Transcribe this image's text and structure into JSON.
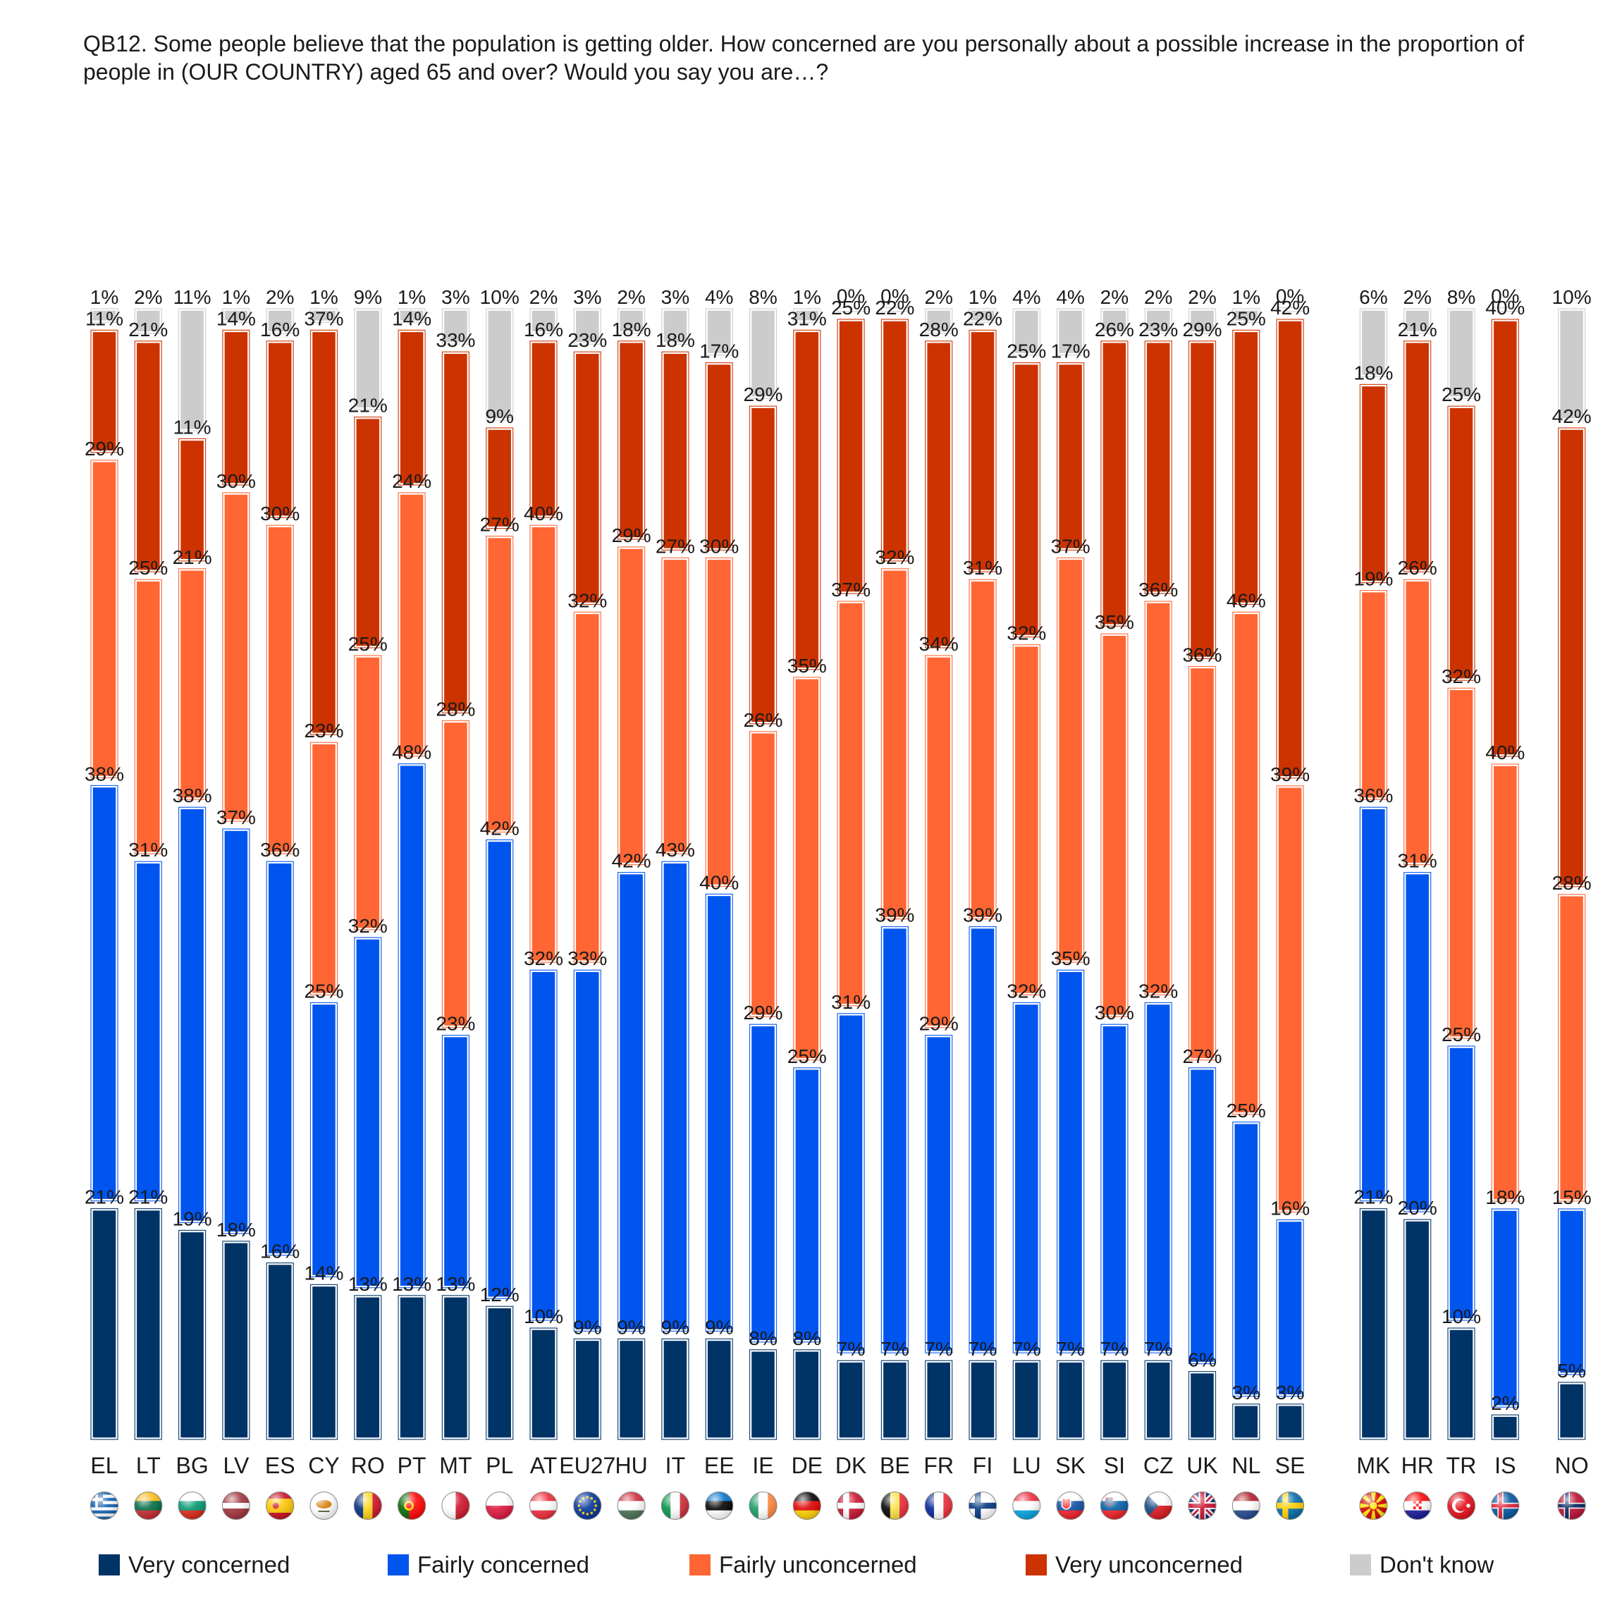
{
  "title": "QB12. Some people believe that the population is getting older. How concerned are you personally about a possible increase in the proportion of people in (OUR COUNTRY) aged 65 and over? Would you say you are…?",
  "chart_data": {
    "type": "bar",
    "stacking": "separated vertical bars per category (floating segments)",
    "ylim": [
      0,
      100
    ],
    "grid": false,
    "legend_position": "bottom",
    "categories": [
      "EL",
      "LT",
      "BG",
      "LV",
      "ES",
      "CY",
      "RO",
      "PT",
      "MT",
      "PL",
      "AT",
      "EU27",
      "HU",
      "IT",
      "EE",
      "IE",
      "DE",
      "DK",
      "BE",
      "FR",
      "FI",
      "LU",
      "SK",
      "SI",
      "CZ",
      "UK",
      "NL",
      "SE",
      "MK",
      "HR",
      "TR",
      "IS",
      "NO"
    ],
    "category_groups": [
      {
        "categories": [
          "EL",
          "LT",
          "BG",
          "LV",
          "ES",
          "CY",
          "RO",
          "PT",
          "MT",
          "PL",
          "AT",
          "EU27",
          "HU",
          "IT",
          "EE",
          "IE",
          "DE",
          "DK",
          "BE",
          "FR",
          "FI",
          "LU",
          "SK",
          "SI",
          "CZ",
          "UK",
          "NL",
          "SE"
        ]
      },
      {
        "categories": [
          "MK",
          "HR",
          "TR",
          "IS"
        ]
      },
      {
        "categories": [
          "NO"
        ]
      }
    ],
    "series": [
      {
        "name": "Very concerned",
        "color": "#003366",
        "values": [
          21,
          21,
          19,
          18,
          16,
          14,
          13,
          13,
          13,
          12,
          10,
          9,
          9,
          9,
          9,
          8,
          8,
          7,
          7,
          7,
          7,
          7,
          7,
          7,
          7,
          6,
          3,
          3,
          21,
          20,
          10,
          2,
          5
        ]
      },
      {
        "name": "Fairly concerned",
        "color": "#0055EE",
        "values": [
          38,
          31,
          38,
          37,
          36,
          25,
          32,
          48,
          23,
          42,
          32,
          33,
          42,
          43,
          40,
          29,
          25,
          31,
          39,
          29,
          39,
          32,
          35,
          30,
          32,
          27,
          25,
          16,
          36,
          31,
          25,
          18,
          15
        ]
      },
      {
        "name": "Fairly unconcerned",
        "color": "#FF6633",
        "values": [
          29,
          25,
          21,
          30,
          30,
          23,
          25,
          24,
          28,
          27,
          40,
          32,
          29,
          27,
          30,
          26,
          35,
          37,
          32,
          34,
          31,
          32,
          37,
          35,
          36,
          36,
          46,
          39,
          19,
          26,
          32,
          40,
          28
        ]
      },
      {
        "name": "Very unconcerned",
        "color": "#CC3300",
        "values": [
          11,
          21,
          11,
          14,
          16,
          37,
          21,
          14,
          33,
          9,
          16,
          23,
          18,
          18,
          17,
          29,
          31,
          25,
          22,
          28,
          22,
          25,
          17,
          26,
          23,
          29,
          25,
          42,
          18,
          21,
          25,
          40,
          42
        ]
      },
      {
        "name": "Don't know",
        "color": "#CCCCCC",
        "values": [
          1,
          2,
          11,
          1,
          2,
          1,
          9,
          1,
          3,
          10,
          2,
          3,
          2,
          3,
          4,
          8,
          1,
          0,
          0,
          2,
          1,
          4,
          4,
          2,
          2,
          2,
          1,
          0,
          6,
          2,
          8,
          0,
          10
        ]
      }
    ],
    "value_suffix": "%",
    "flags": [
      "greece-flag-icon",
      "lithuania-flag-icon",
      "bulgaria-flag-icon",
      "latvia-flag-icon",
      "spain-flag-icon",
      "cyprus-flag-icon",
      "romania-flag-icon",
      "portugal-flag-icon",
      "malta-flag-icon",
      "poland-flag-icon",
      "austria-flag-icon",
      "eu-flag-icon",
      "hungary-flag-icon",
      "italy-flag-icon",
      "estonia-flag-icon",
      "ireland-flag-icon",
      "germany-flag-icon",
      "denmark-flag-icon",
      "belgium-flag-icon",
      "france-flag-icon",
      "finland-flag-icon",
      "luxembourg-flag-icon",
      "slovakia-flag-icon",
      "slovenia-flag-icon",
      "czechia-flag-icon",
      "uk-flag-icon",
      "netherlands-flag-icon",
      "sweden-flag-icon",
      "north-macedonia-flag-icon",
      "croatia-flag-icon",
      "turkey-flag-icon",
      "iceland-flag-icon",
      "norway-flag-icon"
    ]
  },
  "legend": [
    {
      "label": "Very concerned",
      "color": "#003366"
    },
    {
      "label": "Fairly concerned",
      "color": "#0055EE"
    },
    {
      "label": "Fairly unconcerned",
      "color": "#FF6633"
    },
    {
      "label": "Very unconcerned",
      "color": "#CC3300"
    },
    {
      "label": "Don't know",
      "color": "#CCCCCC"
    }
  ]
}
